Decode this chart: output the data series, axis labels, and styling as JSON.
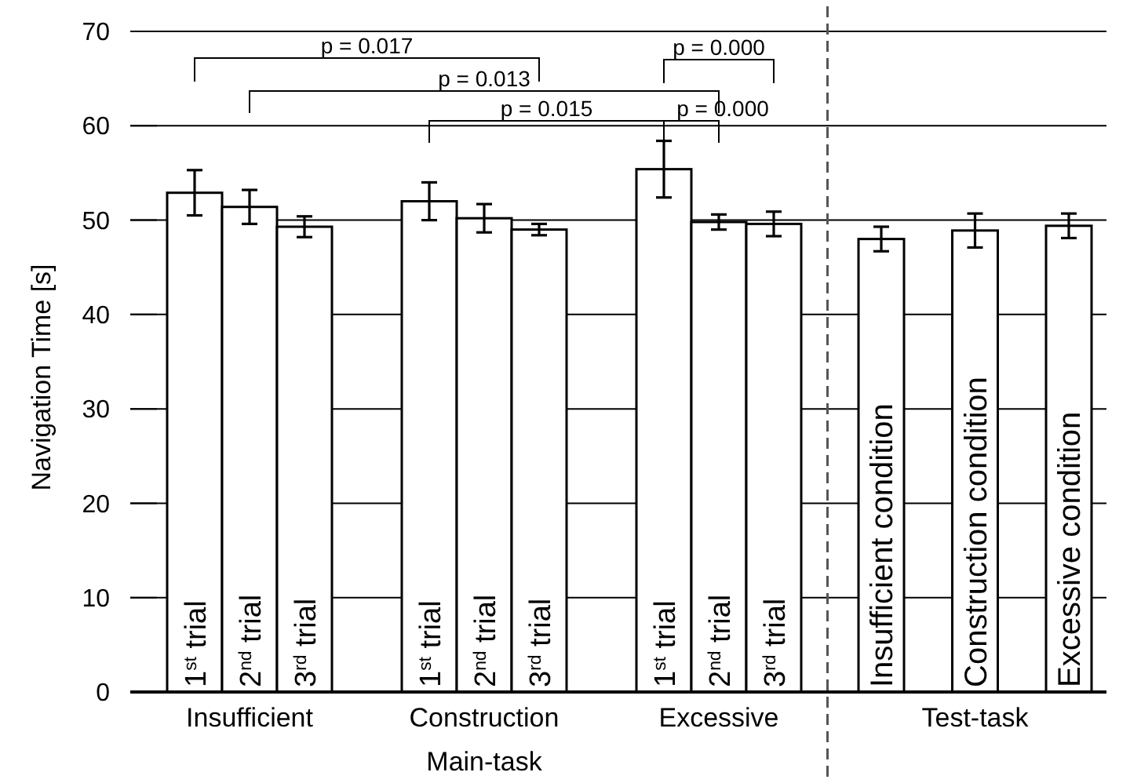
{
  "chart_data": {
    "type": "bar",
    "ylabel": "Navigation Time [s]",
    "xlabel": "Main-task",
    "categories": [
      "1$^{st}$ trial",
      "2$^{nd}$ trial",
      "3$^{rd}$ trial",
      "1$^{st}$ trial",
      "2$^{nd}$ trial",
      "3$^{rd}$ trial",
      "1$^{st}$ trial",
      "2$^{nd}$ trial",
      "3$^{rd}$ trial",
      "Insufficient condition",
      "Construction condition",
      "Excessive condition"
    ],
    "values": [
      52.9,
      51.4,
      49.3,
      52.0,
      50.2,
      49.0,
      55.4,
      49.8,
      49.6,
      48.0,
      48.9,
      49.4
    ],
    "errors": [
      2.4,
      1.8,
      1.1,
      2.0,
      1.5,
      0.6,
      3.0,
      0.8,
      1.3,
      1.3,
      1.8,
      1.3
    ],
    "color": "#ffffff",
    "ylim": [
      0,
      70
    ],
    "yticks": [
      0,
      10,
      20,
      30,
      40,
      50,
      60,
      70
    ],
    "grid": "y",
    "annotations": [
      "p = 0.017",
      "p = 0.013",
      "p = 0.015",
      "p = 0.000",
      "p = 0.000",
      "Insufficient",
      "Construction",
      "Excessive",
      "Test-task"
    ]
  }
}
